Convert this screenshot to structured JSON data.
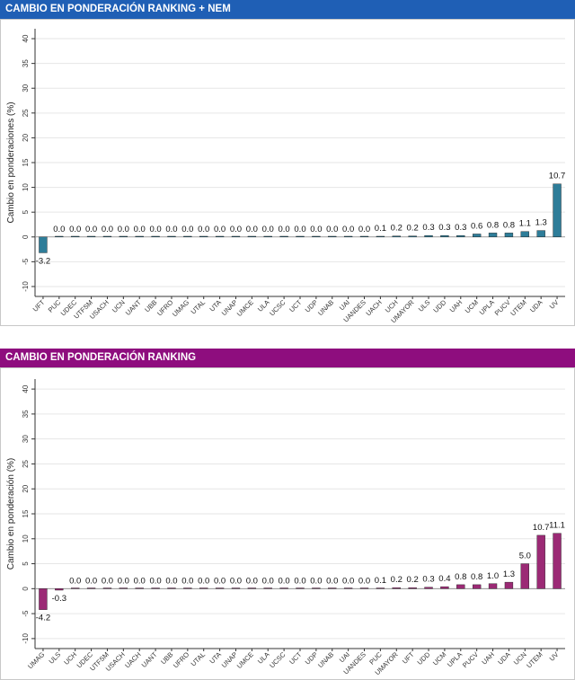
{
  "colors": {
    "chart1_header": "#1F5FB5",
    "chart1_bar": "#2E7D99",
    "chart2_header": "#8E0D7E",
    "chart2_bar": "#9B2A75"
  },
  "chart_data": [
    {
      "type": "bar",
      "header": "CAMBIO EN PONDERACIÓN RANKING + NEM",
      "ylabel": "Cambio en ponderaciones (%)",
      "ylim": [
        -12,
        42
      ],
      "yticks": [
        "40",
        "35",
        "30",
        "25",
        "20",
        "15",
        "10",
        "5",
        "0",
        "-5",
        "-10"
      ],
      "categories": [
        "UFT",
        "PUC",
        "UDEC",
        "UTFSM",
        "USACH",
        "UCN",
        "UANT",
        "UBB",
        "UFRO",
        "UMAG",
        "UTAL",
        "UTA",
        "UNAP",
        "UMCE",
        "ULA",
        "UCSC",
        "UCT",
        "UDP",
        "UNAB",
        "UAI",
        "UANDES",
        "UACH",
        "UCH",
        "UMAYOR",
        "ULS",
        "UDD",
        "UAH",
        "UCM",
        "UPLA",
        "PUCV",
        "UTEM",
        "UDA",
        "UV"
      ],
      "values": [
        -3.2,
        0.0,
        0.0,
        0.0,
        0.0,
        0.0,
        0.0,
        0.0,
        0.0,
        0.0,
        0.0,
        0.0,
        0.0,
        0.0,
        0.0,
        0.0,
        0.0,
        0.0,
        0.0,
        0.0,
        0.0,
        0.1,
        0.2,
        0.2,
        0.3,
        0.3,
        0.3,
        0.6,
        0.8,
        0.8,
        1.1,
        1.3,
        10.7
      ],
      "value_labels": [
        "-3.2",
        "0.0",
        "0.0",
        "0.0",
        "0.0",
        "0.0",
        "0.0",
        "0.0",
        "0.0",
        "0.0",
        "0.0",
        "0.0",
        "0.0",
        "0.0",
        "0.0",
        "0.0",
        "0.0",
        "0.0",
        "0.0",
        "0.0",
        "0.0",
        "0.1",
        "0.2",
        "0.2",
        "0.3",
        "0.3",
        "0.3",
        "0.6",
        "0.8",
        "0.8",
        "1.1",
        "1.3",
        "10.7"
      ]
    },
    {
      "type": "bar",
      "header": "CAMBIO EN PONDERACIÓN RANKING",
      "ylabel": "Cambio en ponderación (%)",
      "ylim": [
        -12,
        42
      ],
      "yticks": [
        "40",
        "35",
        "30",
        "25",
        "20",
        "15",
        "10",
        "5",
        "0",
        "-5",
        "-10"
      ],
      "categories": [
        "UMAG",
        "ULS",
        "UCH",
        "UDEC",
        "UTFSM",
        "USACH",
        "UACH",
        "UANT",
        "UBB",
        "UFRO",
        "UTAL",
        "UTA",
        "UNAP",
        "UMCE",
        "ULA",
        "UCSC",
        "UCT",
        "UDP",
        "UNAB",
        "UAI",
        "UANDES",
        "PUC",
        "UMAYOR",
        "UFT",
        "UDD",
        "UCM",
        "UPLA",
        "PUCV",
        "UAH",
        "UDA",
        "UCN",
        "UTEM",
        "UV"
      ],
      "values": [
        -4.2,
        -0.3,
        0.0,
        0.0,
        0.0,
        0.0,
        0.0,
        0.0,
        0.0,
        0.0,
        0.0,
        0.0,
        0.0,
        0.0,
        0.0,
        0.0,
        0.0,
        0.0,
        0.0,
        0.0,
        0.0,
        0.1,
        0.2,
        0.2,
        0.3,
        0.4,
        0.8,
        0.8,
        1.0,
        1.3,
        5.0,
        10.7,
        11.1
      ],
      "value_labels": [
        "-4.2",
        "-0.3",
        "0.0",
        "0.0",
        "0.0",
        "0.0",
        "0.0",
        "0.0",
        "0.0",
        "0.0",
        "0.0",
        "0.0",
        "0.0",
        "0.0",
        "0.0",
        "0.0",
        "0.0",
        "0.0",
        "0.0",
        "0.0",
        "0.0",
        "0.1",
        "0.2",
        "0.2",
        "0.3",
        "0.4",
        "0.8",
        "0.8",
        "1.0",
        "1.3",
        "5.0",
        "10.7",
        "11.1"
      ]
    }
  ]
}
